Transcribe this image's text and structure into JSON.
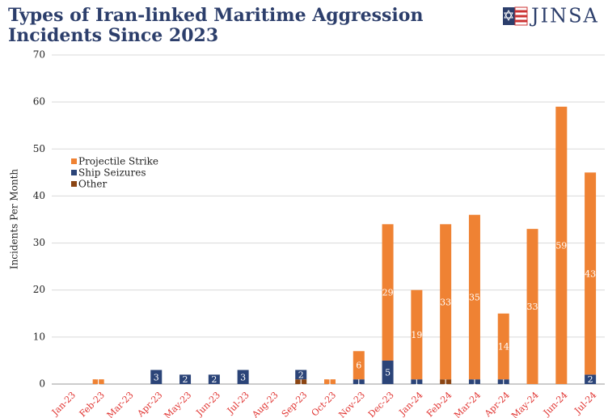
{
  "chart_data": {
    "type": "stacked_bar",
    "title": [
      "Types of Iran-linked Maritime Aggression",
      "Incidents Since 2023"
    ],
    "logo": "JINSA",
    "y_label": "Incidents Per Month",
    "categories": [
      "Jan-23",
      "Feb-23",
      "Mar-23",
      "Apr-23",
      "May-23",
      "Jun-23",
      "Jul-23",
      "Aug-23",
      "Sep-23",
      "Oct-23",
      "Nov-23",
      "Dec-23",
      "Jan-24",
      "Feb-24",
      "Mar-24",
      "Apr-24",
      "May-24",
      "Jun-24",
      "Jul-24"
    ],
    "series": [
      {
        "name": "Other",
        "color": "#8b4513",
        "values": [
          0,
          0,
          0,
          0,
          0,
          0,
          0,
          0,
          1,
          0,
          0,
          0,
          0,
          1,
          0,
          0,
          0,
          0,
          0
        ]
      },
      {
        "name": "Ship Seizures",
        "color": "#2b4478",
        "values": [
          0,
          0,
          0,
          3,
          2,
          2,
          3,
          0,
          2,
          0,
          1,
          5,
          1,
          0,
          1,
          1,
          0,
          0,
          2
        ]
      },
      {
        "name": "Projectile Strike",
        "color": "#ef8233",
        "values": [
          0,
          1,
          0,
          0,
          0,
          0,
          0,
          0,
          0,
          1,
          6,
          29,
          19,
          33,
          35,
          14,
          33,
          59,
          43
        ]
      }
    ],
    "legend_order": [
      2,
      1,
      0
    ],
    "ylim": [
      0,
      70
    ],
    "yticks": [
      0,
      10,
      20,
      30,
      40,
      50,
      60,
      70
    ],
    "grid": true
  }
}
